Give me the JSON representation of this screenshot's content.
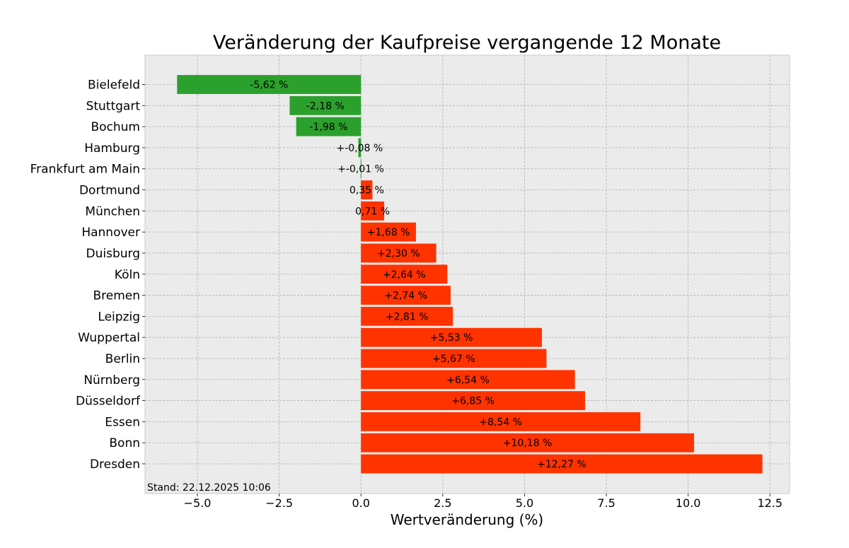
{
  "chart_data": {
    "type": "bar",
    "orientation": "horizontal",
    "title": "Veränderung der Kaufpreise vergangende 12 Monate",
    "xlabel": "Wertveränderung (%)",
    "ylabel": "",
    "xlim": [
      -6.6,
      13.1
    ],
    "xticks": [
      -5.0,
      -2.5,
      0.0,
      2.5,
      5.0,
      7.5,
      10.0,
      12.5
    ],
    "xtick_labels": [
      "−5.0",
      "−2.5",
      "0.0",
      "2.5",
      "5.0",
      "7.5",
      "10.0",
      "12.5"
    ],
    "grid": true,
    "categories": [
      "Bielefeld",
      "Stuttgart",
      "Bochum",
      "Hamburg",
      "Frankfurt am Main",
      "Dortmund",
      "München",
      "Hannover",
      "Duisburg",
      "Köln",
      "Bremen",
      "Leipzig",
      "Wuppertal",
      "Berlin",
      "Nürnberg",
      "Düsseldorf",
      "Essen",
      "Bonn",
      "Dresden"
    ],
    "values": [
      -5.62,
      -2.18,
      -1.98,
      -0.08,
      -0.01,
      0.35,
      0.71,
      1.68,
      2.3,
      2.64,
      2.74,
      2.81,
      5.53,
      5.67,
      6.54,
      6.85,
      8.54,
      10.18,
      12.27
    ],
    "labels": [
      "-5,62 %",
      "-2,18 %",
      "-1,98 %",
      "+-0,08 %",
      "+-0,01 %",
      "0,35 %",
      "0,71 %",
      "+1,68 %",
      "+2,30 %",
      "+2,64 %",
      "+2,74 %",
      "+2,81 %",
      "+5,53 %",
      "+5,67 %",
      "+6,54 %",
      "+6,85 %",
      "+8,54 %",
      "+10,18 %",
      "+12,27 %"
    ],
    "colors": {
      "negative": "#2ca02c",
      "positive": "#ff3300",
      "background": "#ebebeb",
      "frame": "#c8c8c8"
    },
    "annotation": "Stand: 22.12.2025 10:06"
  }
}
